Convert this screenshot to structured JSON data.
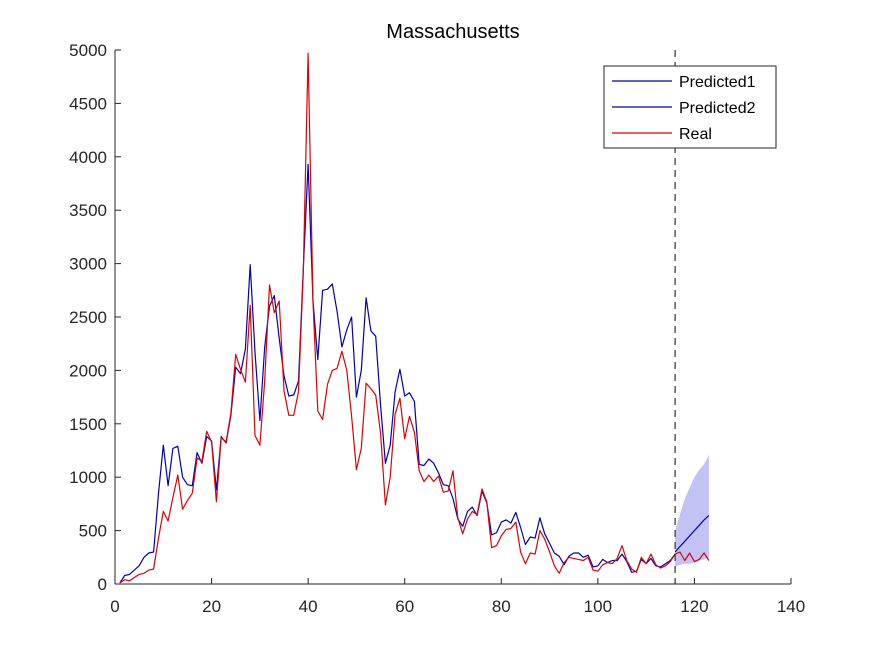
{
  "chart_data": {
    "type": "line",
    "title": "Massachusetts",
    "xlabel": "",
    "ylabel": "",
    "xlim": [
      0,
      140
    ],
    "ylim": [
      0,
      5000
    ],
    "x_ticks": [
      0,
      20,
      40,
      60,
      80,
      100,
      120,
      140
    ],
    "y_ticks": [
      0,
      500,
      1000,
      1500,
      2000,
      2500,
      3000,
      3500,
      4000,
      4500,
      5000
    ],
    "x_tick_labels": [
      "0",
      "20",
      "40",
      "60",
      "80",
      "100",
      "120",
      "140"
    ],
    "y_tick_labels": [
      "0",
      "500",
      "1000",
      "1500",
      "2000",
      "2500",
      "3000",
      "3500",
      "4000",
      "4500",
      "5000"
    ],
    "grid": false,
    "legend_position": "top-right",
    "vertical_reference_line": {
      "x": 116,
      "style": "dashed",
      "color": "#333333"
    },
    "series": [
      {
        "name": "Predicted1",
        "color": "#0000b4",
        "x": [
          1,
          2,
          3,
          4,
          5,
          6,
          7,
          8,
          9,
          10,
          11,
          12,
          13,
          14,
          15,
          16,
          17,
          18,
          19,
          20,
          21,
          22,
          23,
          24,
          25,
          26,
          27,
          28,
          29,
          30,
          31,
          32,
          33,
          34,
          35,
          36,
          37,
          38,
          39,
          40,
          41,
          42,
          43,
          44,
          45,
          46,
          47,
          48,
          49,
          50,
          51,
          52,
          53,
          54,
          55,
          56,
          57,
          58,
          59,
          60,
          61,
          62,
          63,
          64,
          65,
          66,
          67,
          68,
          69,
          70,
          71,
          72,
          73,
          74,
          75,
          76,
          77,
          78,
          79,
          80,
          81,
          82,
          83,
          84,
          85,
          86,
          87,
          88,
          89,
          90,
          91,
          92,
          93,
          94,
          95,
          96,
          97,
          98,
          99,
          100,
          101,
          102,
          103,
          104,
          105,
          106,
          107,
          108,
          109,
          110,
          111,
          112,
          113,
          114,
          115,
          116
        ],
        "values": [
          10,
          80,
          90,
          130,
          170,
          250,
          290,
          300,
          850,
          1300,
          920,
          1270,
          1290,
          1000,
          930,
          920,
          1230,
          1130,
          1380,
          1340,
          880,
          1380,
          1320,
          1580,
          2030,
          1970,
          2200,
          2990,
          2170,
          1530,
          2220,
          2600,
          2700,
          2300,
          1950,
          1760,
          1770,
          1900,
          2950,
          3930,
          2650,
          2100,
          2750,
          2760,
          2810,
          2550,
          2220,
          2380,
          2500,
          1750,
          2000,
          2680,
          2370,
          2320,
          1670,
          1130,
          1300,
          1800,
          2010,
          1760,
          1790,
          1710,
          1120,
          1110,
          1170,
          1130,
          1040,
          930,
          920,
          800,
          610,
          540,
          680,
          720,
          640,
          870,
          760,
          460,
          480,
          580,
          600,
          570,
          670,
          530,
          370,
          440,
          430,
          620,
          470,
          380,
          290,
          260,
          180,
          260,
          290,
          290,
          250,
          270,
          160,
          170,
          230,
          200,
          220,
          220,
          280,
          210,
          110,
          120,
          230,
          190,
          240,
          170,
          160,
          190,
          220,
          280
        ]
      },
      {
        "name": "Predicted2",
        "color": "#0000b4",
        "x": [
          116,
          117,
          118,
          119,
          120,
          121,
          122,
          123
        ],
        "values": [
          300,
          350,
          400,
          450,
          500,
          550,
          600,
          640
        ]
      },
      {
        "name": "Real",
        "color": "#e00000",
        "x": [
          1,
          2,
          3,
          4,
          5,
          6,
          7,
          8,
          9,
          10,
          11,
          12,
          13,
          14,
          15,
          16,
          17,
          18,
          19,
          20,
          21,
          22,
          23,
          24,
          25,
          26,
          27,
          28,
          29,
          30,
          31,
          32,
          33,
          34,
          35,
          36,
          37,
          38,
          39,
          40,
          41,
          42,
          43,
          44,
          45,
          46,
          47,
          48,
          49,
          50,
          51,
          52,
          53,
          54,
          55,
          56,
          57,
          58,
          59,
          60,
          61,
          62,
          63,
          64,
          65,
          66,
          67,
          68,
          69,
          70,
          71,
          72,
          73,
          74,
          75,
          76,
          77,
          78,
          79,
          80,
          81,
          82,
          83,
          84,
          85,
          86,
          87,
          88,
          89,
          90,
          91,
          92,
          93,
          94,
          95,
          96,
          97,
          98,
          99,
          100,
          101,
          102,
          103,
          104,
          105,
          106,
          107,
          108,
          109,
          110,
          111,
          112,
          113,
          114,
          115,
          116,
          117,
          118,
          119,
          120,
          121,
          122,
          123
        ],
        "values": [
          10,
          40,
          30,
          60,
          90,
          100,
          130,
          140,
          430,
          680,
          590,
          810,
          1020,
          700,
          780,
          850,
          1180,
          1150,
          1430,
          1330,
          770,
          1370,
          1330,
          1600,
          2150,
          2010,
          1890,
          2610,
          1390,
          1300,
          1900,
          2800,
          2540,
          2650,
          1810,
          1580,
          1580,
          1800,
          2920,
          4970,
          2640,
          1620,
          1540,
          1870,
          2000,
          2020,
          2180,
          2000,
          1570,
          1070,
          1270,
          1880,
          1830,
          1770,
          1410,
          740,
          1000,
          1590,
          1740,
          1360,
          1570,
          1420,
          1060,
          960,
          1020,
          960,
          1010,
          860,
          870,
          1060,
          620,
          470,
          610,
          680,
          650,
          890,
          770,
          340,
          360,
          450,
          510,
          520,
          580,
          300,
          190,
          290,
          280,
          500,
          420,
          300,
          170,
          100,
          200,
          250,
          240,
          230,
          220,
          250,
          130,
          120,
          180,
          200,
          190,
          240,
          360,
          220,
          140,
          110,
          250,
          190,
          280,
          180,
          150,
          170,
          210,
          280,
          300,
          220,
          290,
          210,
          230,
          290,
          220
        ]
      }
    ],
    "confidence_band": {
      "color": "#9999ee",
      "x": [
        116,
        117,
        118,
        119,
        120,
        121,
        122,
        123
      ],
      "upper": [
        500,
        650,
        800,
        900,
        1000,
        1070,
        1120,
        1210
      ],
      "lower": [
        160,
        180,
        190,
        190,
        200,
        220,
        230,
        250
      ]
    }
  }
}
